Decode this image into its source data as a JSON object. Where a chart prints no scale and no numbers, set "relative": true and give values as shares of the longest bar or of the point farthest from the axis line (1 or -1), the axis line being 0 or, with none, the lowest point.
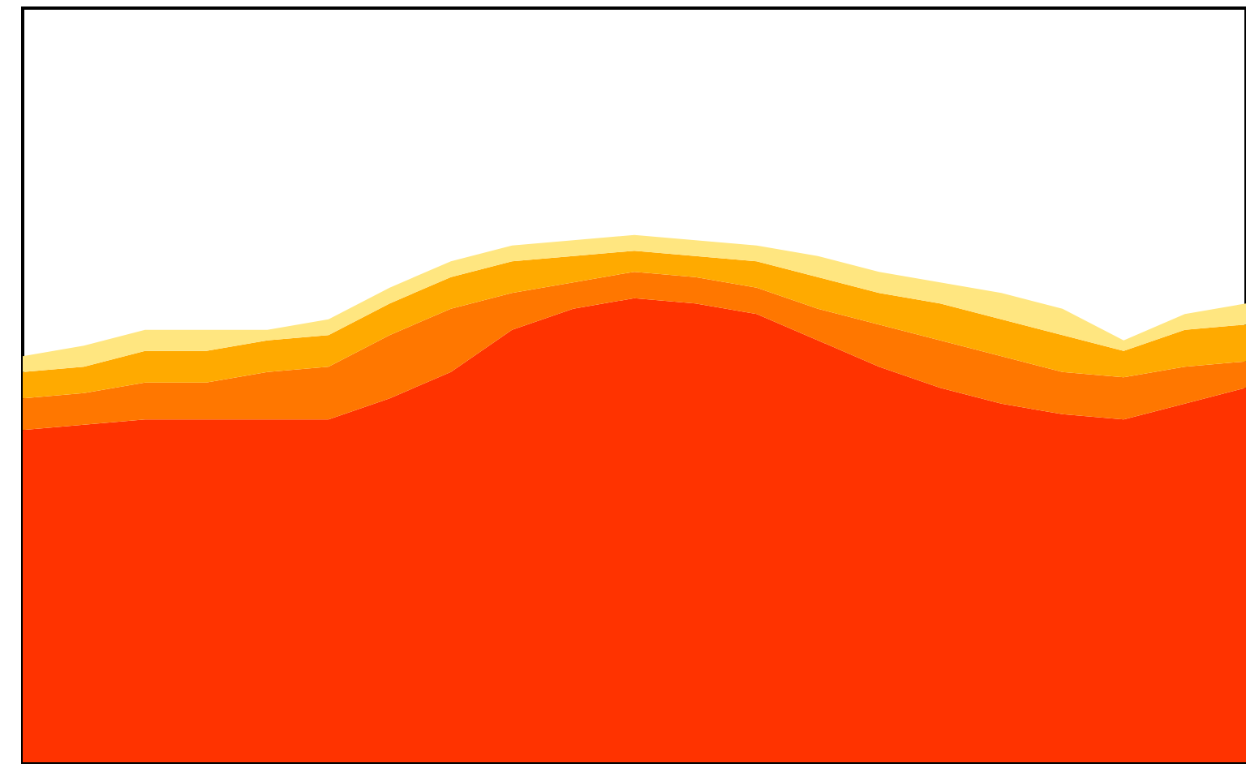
{
  "chart_data": {
    "type": "area",
    "relative": true,
    "stacked": true,
    "categories": [
      null,
      null,
      null,
      null,
      null,
      null,
      null,
      null,
      null,
      null,
      null,
      null,
      null,
      null,
      null,
      null,
      null,
      null,
      null,
      null,
      null
    ],
    "series": [
      {
        "color": "#ff3300",
        "values": [
          0.63,
          0.64,
          0.65,
          0.65,
          0.65,
          0.65,
          0.69,
          0.74,
          0.82,
          0.86,
          0.88,
          0.87,
          0.85,
          0.8,
          0.75,
          0.71,
          0.68,
          0.66,
          0.65,
          0.68,
          0.71
        ]
      },
      {
        "color": "#ff7700",
        "values": [
          0.06,
          0.06,
          0.07,
          0.07,
          0.09,
          0.1,
          0.12,
          0.12,
          0.07,
          0.05,
          0.05,
          0.05,
          0.05,
          0.06,
          0.08,
          0.09,
          0.09,
          0.08,
          0.08,
          0.07,
          0.05
        ]
      },
      {
        "color": "#ffaa00",
        "values": [
          0.05,
          0.05,
          0.06,
          0.06,
          0.06,
          0.06,
          0.06,
          0.06,
          0.06,
          0.05,
          0.04,
          0.04,
          0.05,
          0.06,
          0.06,
          0.07,
          0.07,
          0.07,
          0.05,
          0.07,
          0.07
        ]
      },
      {
        "color": "#ffe680",
        "values": [
          0.03,
          0.04,
          0.04,
          0.04,
          0.02,
          0.03,
          0.03,
          0.03,
          0.03,
          0.03,
          0.03,
          0.03,
          0.03,
          0.04,
          0.04,
          0.04,
          0.05,
          0.05,
          0.02,
          0.03,
          0.04
        ]
      }
    ]
  }
}
